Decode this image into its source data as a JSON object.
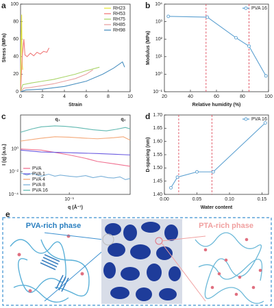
{
  "chart_data": [
    {
      "type": "line",
      "panel_label": "a",
      "x_label": "Strain",
      "y_label": "Stress (MPa)",
      "xlim": [
        0,
        10
      ],
      "xticks": [
        0,
        2,
        4,
        6,
        8,
        10
      ],
      "ylim": [
        0,
        100
      ],
      "yticks": [
        0,
        20,
        40,
        60,
        80,
        100
      ],
      "legend": "upper right",
      "markers": false,
      "series": [
        {
          "name": "RH23",
          "color": "#e6e63c",
          "x": [
            0,
            0.05,
            0.1,
            0.13,
            0.16,
            0.2
          ],
          "values": [
            0,
            60,
            88,
            50,
            30,
            25
          ]
        },
        {
          "name": "RH53",
          "color": "#f07878",
          "x": [
            0,
            0.15,
            0.3,
            0.4,
            0.6,
            0.9,
            1.2,
            1.5,
            1.8,
            2.1,
            2.4,
            2.6
          ],
          "values": [
            0,
            40,
            60,
            42,
            40,
            44,
            41,
            45,
            43,
            46,
            45,
            50
          ]
        },
        {
          "name": "RH75",
          "color": "#a8d468",
          "x": [
            0,
            0.2,
            1,
            2,
            3,
            4,
            5,
            6,
            7.2
          ],
          "values": [
            0,
            8,
            10,
            12,
            14,
            17,
            20,
            24,
            28
          ]
        },
        {
          "name": "RH85",
          "color": "#e8a0a0",
          "x": [
            0,
            0.3,
            1,
            2,
            3,
            4,
            5,
            6,
            6.6
          ],
          "values": [
            0,
            4,
            5,
            7,
            9,
            12,
            15,
            20,
            25
          ]
        },
        {
          "name": "RH98",
          "color": "#4a90c0",
          "x": [
            0,
            0.5,
            2,
            4,
            6,
            7.5,
            8.5,
            9.3,
            9.5
          ],
          "values": [
            0,
            2,
            3,
            6,
            12,
            20,
            27,
            34,
            28
          ]
        }
      ]
    },
    {
      "type": "line",
      "panel_label": "b",
      "x_label": "Relative humidity (%)",
      "y_label": "Modulus (MPa)",
      "xlim": [
        20,
        100
      ],
      "xticks": [
        20,
        40,
        60,
        80,
        100
      ],
      "log_y": true,
      "ylim": [
        0.1,
        10000
      ],
      "yticks": [
        {
          "value": 0.1,
          "label": "10⁻¹"
        },
        {
          "value": 1,
          "label": "10⁰"
        },
        {
          "value": 10,
          "label": "10¹"
        },
        {
          "value": 100,
          "label": "10²"
        },
        {
          "value": 1000,
          "label": "10³"
        },
        {
          "value": 10000,
          "label": "10⁴"
        }
      ],
      "legend": "upper right",
      "markers": true,
      "vlines": [
        52,
        85
      ],
      "vline_color": "#e05060",
      "series": [
        {
          "name": "PVA 16",
          "color": "#5a9fd0",
          "x": [
            23,
            53,
            75,
            85,
            98
          ],
          "values": [
            2000,
            1800,
            120,
            40,
            0.8
          ]
        }
      ]
    },
    {
      "type": "line",
      "panel_label": "c",
      "x_label": "q (Å⁻¹)",
      "y_label": "I (q) (a.u.)",
      "log_x": true,
      "xlim": [
        0.03,
        0.45
      ],
      "xticks": [
        {
          "value": 0.1,
          "label": "10⁻¹"
        }
      ],
      "log_y": true,
      "ylim": [
        0.0001,
        1000
      ],
      "yticks": [
        {
          "value": 0.0001,
          "label": "10⁻⁴"
        },
        {
          "value": 0.01,
          "label": "10⁻²"
        },
        {
          "value": 1,
          "label": "10⁰"
        }
      ],
      "legend": "lower left",
      "markers": false,
      "annotations": [
        {
          "text": "q₁",
          "x": 0.075,
          "y": 400
        },
        {
          "text": "q₂",
          "x": 0.38,
          "y": 400
        }
      ],
      "series": [
        {
          "name": "PVA",
          "color": "#f07090",
          "x": [
            0.03,
            0.05,
            0.07,
            0.1,
            0.15,
            0.2,
            0.3,
            0.45
          ],
          "values": [
            1,
            0.8,
            0.5,
            0.3,
            0.15,
            0.08,
            0.05,
            0.03
          ]
        },
        {
          "name": "PVA 1",
          "color": "#6a5ae0",
          "x": [
            0.03,
            0.05,
            0.08,
            0.12,
            0.2,
            0.3,
            0.45
          ],
          "values": [
            0.8,
            0.55,
            0.5,
            0.45,
            0.4,
            0.35,
            0.3
          ]
        },
        {
          "name": "PVA 4",
          "color": "#f4a878",
          "x": [
            0.03,
            0.05,
            0.07,
            0.1,
            0.15,
            0.2,
            0.3,
            0.38,
            0.45
          ],
          "values": [
            5,
            9,
            12,
            11,
            9,
            8,
            10,
            12,
            6
          ]
        },
        {
          "name": "PVA 8",
          "color": "#7ab0d8",
          "x": [
            0.03,
            0.035,
            0.04,
            0.05,
            0.06,
            0.07,
            0.08,
            0.1,
            0.12,
            0.15,
            0.18,
            0.22,
            0.26,
            0.3,
            0.35,
            0.4,
            0.45
          ],
          "values": [
            0.008,
            0.005,
            0.007,
            0.004,
            0.006,
            0.004,
            0.005,
            0.004,
            0.0035,
            0.0045,
            0.003,
            0.004,
            0.003,
            0.0028,
            0.0035,
            0.002,
            0.0025
          ]
        },
        {
          "name": "PVA 16",
          "color": "#5fb8b0",
          "x": [
            0.03,
            0.04,
            0.05,
            0.07,
            0.09,
            0.12,
            0.18,
            0.25,
            0.32,
            0.4,
            0.45
          ],
          "values": [
            30,
            60,
            90,
            110,
            100,
            80,
            50,
            40,
            55,
            80,
            60
          ]
        }
      ]
    },
    {
      "type": "line",
      "panel_label": "d",
      "x_label": "Water content",
      "y_label": "D-spacing (nm)",
      "xlim": [
        0,
        0.16
      ],
      "xticks": [
        {
          "value": 0,
          "label": "0.00"
        },
        {
          "value": 0.05,
          "label": "0.05"
        },
        {
          "value": 0.1,
          "label": "0.10"
        },
        {
          "value": 0.15,
          "label": "0.15"
        }
      ],
      "ylim": [
        1.4,
        1.7
      ],
      "yticks": [
        {
          "value": 1.4,
          "label": "1.40"
        },
        {
          "value": 1.45,
          "label": "1.45"
        },
        {
          "value": 1.5,
          "label": "1.50"
        },
        {
          "value": 1.55,
          "label": "1.55"
        },
        {
          "value": 1.6,
          "label": "1.60"
        },
        {
          "value": 1.65,
          "label": "1.65"
        },
        {
          "value": 1.7,
          "label": "1.70"
        }
      ],
      "legend": "upper right",
      "markers": true,
      "vlines": [
        0.022,
        0.073
      ],
      "vline_color": "#e05060",
      "series": [
        {
          "name": "PVA 16",
          "color": "#5a9fd0",
          "x": [
            0.01,
            0.02,
            0.05,
            0.075,
            0.155
          ],
          "values": [
            1.425,
            1.465,
            1.485,
            1.485,
            1.67
          ]
        }
      ]
    }
  ],
  "panel_e": {
    "label": "e",
    "left_title": "PVA-rich phase",
    "right_title": "PTA-rich phase"
  }
}
